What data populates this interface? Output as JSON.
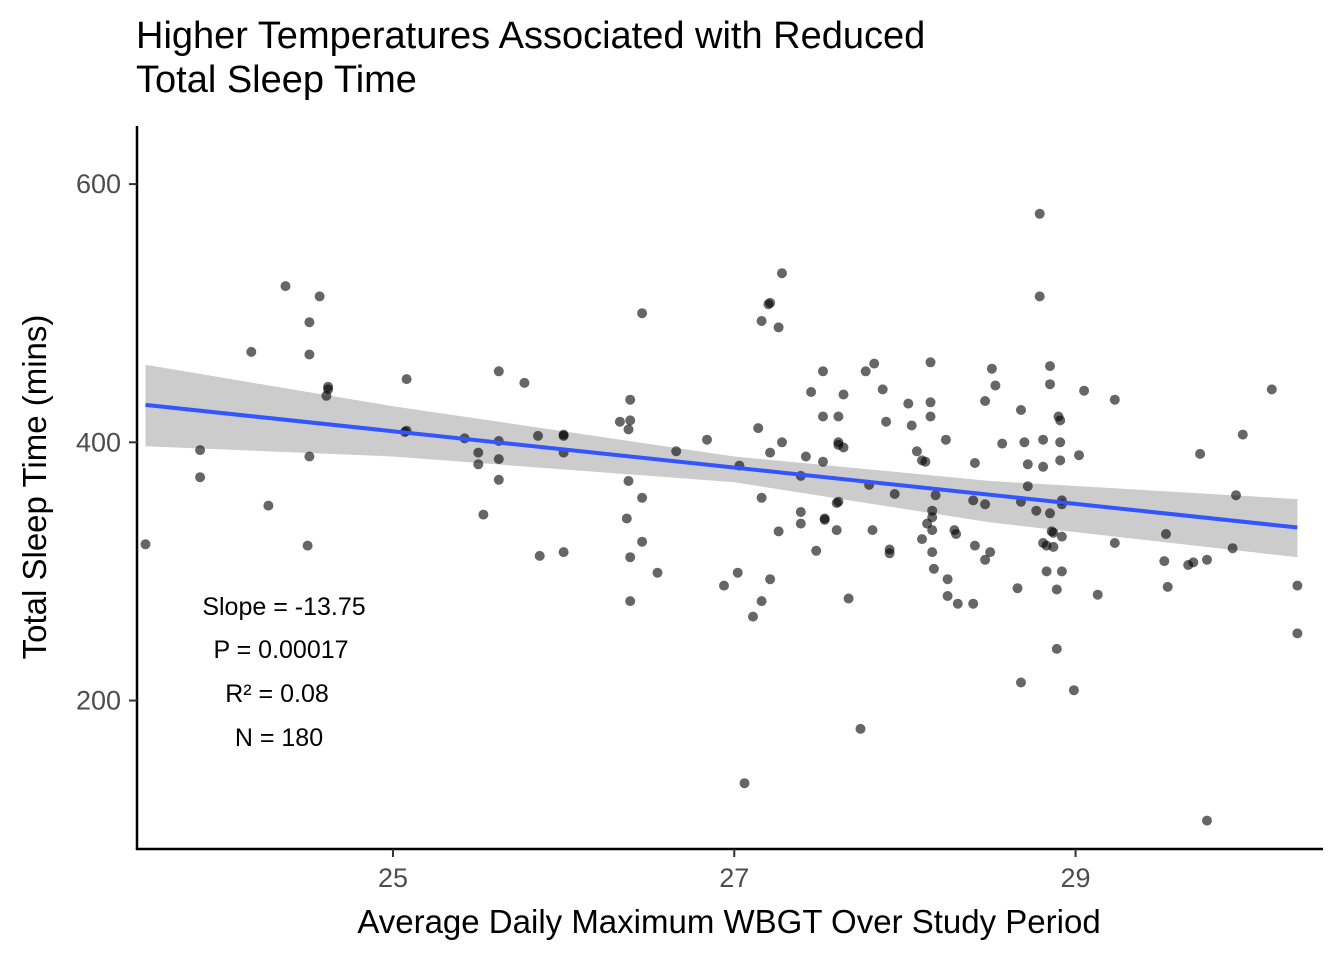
{
  "chart_data": {
    "type": "scatter",
    "title_lines": [
      "Higher Temperatures Associated with Reduced",
      "Total Sleep Time"
    ],
    "xlabel": "Average Daily Maximum WBGT Over Study Period",
    "ylabel": "Total Sleep Time (mins)",
    "xlim": [
      23.5,
      30.45
    ],
    "ylim": [
      85,
      645
    ],
    "x_ticks": [
      25,
      27,
      29
    ],
    "x_tick_labels": [
      "25",
      "27",
      "29"
    ],
    "y_ticks": [
      200,
      400,
      600
    ],
    "y_tick_labels": [
      "200",
      "400",
      "600"
    ],
    "grid": false,
    "colors": {
      "points": "#000000",
      "fit_line": "#3355ff",
      "confidence_band": "#cccccc"
    },
    "fit": {
      "x_range": [
        23.55,
        30.3
      ],
      "line": [
        [
          23.55,
          429
        ],
        [
          30.3,
          334
        ]
      ],
      "ci_upper": [
        [
          23.55,
          460
        ],
        [
          25.0,
          428
        ],
        [
          27.0,
          389
        ],
        [
          28.5,
          370
        ],
        [
          30.3,
          356
        ]
      ],
      "ci_lower": [
        [
          23.55,
          397
        ],
        [
          25.0,
          389
        ],
        [
          27.0,
          369
        ],
        [
          28.5,
          338
        ],
        [
          30.3,
          311
        ]
      ]
    },
    "annotations": [
      "Slope = -13.75",
      "P = 0.00017",
      "R² = 0.08",
      "N = 180"
    ],
    "points": [
      [
        23.55,
        321
      ],
      [
        23.87,
        394
      ],
      [
        23.87,
        373
      ],
      [
        24.17,
        470
      ],
      [
        24.27,
        351
      ],
      [
        24.37,
        521
      ],
      [
        24.57,
        513
      ],
      [
        24.51,
        493
      ],
      [
        24.51,
        468
      ],
      [
        24.62,
        443
      ],
      [
        24.62,
        441
      ],
      [
        24.61,
        436
      ],
      [
        24.51,
        389
      ],
      [
        24.5,
        320
      ],
      [
        25.08,
        449
      ],
      [
        25.08,
        409
      ],
      [
        25.07,
        408
      ],
      [
        25.42,
        403
      ],
      [
        25.5,
        392
      ],
      [
        25.5,
        383
      ],
      [
        25.53,
        344
      ],
      [
        25.62,
        455
      ],
      [
        25.62,
        401
      ],
      [
        25.62,
        387
      ],
      [
        25.62,
        371
      ],
      [
        25.77,
        446
      ],
      [
        25.85,
        405
      ],
      [
        25.86,
        312
      ],
      [
        26.0,
        406
      ],
      [
        26.0,
        405
      ],
      [
        26.0,
        392
      ],
      [
        26.0,
        315
      ],
      [
        26.33,
        416
      ],
      [
        26.39,
        433
      ],
      [
        26.39,
        417
      ],
      [
        26.38,
        410
      ],
      [
        26.38,
        370
      ],
      [
        26.37,
        341
      ],
      [
        26.39,
        311
      ],
      [
        26.39,
        277
      ],
      [
        26.46,
        500
      ],
      [
        26.46,
        357
      ],
      [
        26.46,
        323
      ],
      [
        26.55,
        299
      ],
      [
        26.66,
        393
      ],
      [
        26.84,
        402
      ],
      [
        26.94,
        289
      ],
      [
        27.02,
        299
      ],
      [
        27.03,
        382
      ],
      [
        27.06,
        136
      ],
      [
        27.11,
        265
      ],
      [
        27.14,
        411
      ],
      [
        27.16,
        494
      ],
      [
        27.16,
        357
      ],
      [
        27.16,
        277
      ],
      [
        27.21,
        508
      ],
      [
        27.2,
        507
      ],
      [
        27.21,
        392
      ],
      [
        27.21,
        294
      ],
      [
        27.26,
        489
      ],
      [
        27.28,
        531
      ],
      [
        27.28,
        400
      ],
      [
        27.26,
        331
      ],
      [
        27.39,
        374
      ],
      [
        27.39,
        346
      ],
      [
        27.39,
        337
      ],
      [
        27.42,
        389
      ],
      [
        27.45,
        439
      ],
      [
        27.48,
        316
      ],
      [
        27.52,
        455
      ],
      [
        27.52,
        420
      ],
      [
        27.52,
        385
      ],
      [
        27.53,
        341
      ],
      [
        27.53,
        340
      ],
      [
        27.61,
        420
      ],
      [
        27.61,
        400
      ],
      [
        27.61,
        398
      ],
      [
        27.6,
        353
      ],
      [
        27.61,
        354
      ],
      [
        27.6,
        332
      ],
      [
        27.64,
        437
      ],
      [
        27.64,
        396
      ],
      [
        27.67,
        279
      ],
      [
        27.77,
        455
      ],
      [
        27.74,
        178
      ],
      [
        27.79,
        367
      ],
      [
        27.82,
        461
      ],
      [
        27.81,
        332
      ],
      [
        27.87,
        441
      ],
      [
        27.89,
        416
      ],
      [
        27.91,
        317
      ],
      [
        27.91,
        314
      ],
      [
        27.94,
        360
      ],
      [
        28.02,
        430
      ],
      [
        28.04,
        413
      ],
      [
        28.07,
        393
      ],
      [
        28.1,
        386
      ],
      [
        28.1,
        325
      ],
      [
        28.12,
        385
      ],
      [
        28.13,
        337
      ],
      [
        28.15,
        462
      ],
      [
        28.15,
        431
      ],
      [
        28.15,
        420
      ],
      [
        28.16,
        347
      ],
      [
        28.16,
        342
      ],
      [
        28.16,
        332
      ],
      [
        28.16,
        315
      ],
      [
        28.17,
        302
      ],
      [
        28.18,
        359
      ],
      [
        28.24,
        402
      ],
      [
        28.25,
        294
      ],
      [
        28.25,
        281
      ],
      [
        28.29,
        332
      ],
      [
        28.3,
        329
      ],
      [
        28.31,
        275
      ],
      [
        28.41,
        384
      ],
      [
        28.4,
        355
      ],
      [
        28.4,
        275
      ],
      [
        28.41,
        320
      ],
      [
        28.47,
        432
      ],
      [
        28.47,
        352
      ],
      [
        28.47,
        309
      ],
      [
        28.5,
        315
      ],
      [
        28.51,
        457
      ],
      [
        28.53,
        444
      ],
      [
        28.57,
        399
      ],
      [
        28.66,
        287
      ],
      [
        28.68,
        425
      ],
      [
        28.68,
        354
      ],
      [
        28.68,
        214
      ],
      [
        28.7,
        400
      ],
      [
        28.72,
        366
      ],
      [
        28.72,
        383
      ],
      [
        28.77,
        347
      ],
      [
        28.81,
        381
      ],
      [
        28.79,
        577
      ],
      [
        28.79,
        513
      ],
      [
        28.81,
        402
      ],
      [
        28.81,
        322
      ],
      [
        28.83,
        320
      ],
      [
        28.83,
        300
      ],
      [
        28.85,
        459
      ],
      [
        28.85,
        445
      ],
      [
        28.85,
        345
      ],
      [
        28.86,
        331
      ],
      [
        28.87,
        319
      ],
      [
        28.87,
        330
      ],
      [
        28.89,
        286
      ],
      [
        28.89,
        240
      ],
      [
        28.9,
        420
      ],
      [
        28.91,
        417
      ],
      [
        28.91,
        400
      ],
      [
        28.91,
        386
      ],
      [
        28.92,
        355
      ],
      [
        28.92,
        352
      ],
      [
        28.92,
        327
      ],
      [
        28.92,
        300
      ],
      [
        28.99,
        208
      ],
      [
        29.02,
        390
      ],
      [
        29.05,
        440
      ],
      [
        29.13,
        282
      ],
      [
        29.23,
        433
      ],
      [
        29.23,
        322
      ],
      [
        29.52,
        308
      ],
      [
        29.54,
        288
      ],
      [
        29.53,
        329
      ],
      [
        29.66,
        305
      ],
      [
        29.69,
        307
      ],
      [
        29.73,
        391
      ],
      [
        29.77,
        309
      ],
      [
        29.77,
        107
      ],
      [
        29.92,
        318
      ],
      [
        29.94,
        359
      ],
      [
        29.98,
        406
      ],
      [
        30.15,
        441
      ],
      [
        30.3,
        289
      ],
      [
        30.3,
        252
      ]
    ]
  }
}
